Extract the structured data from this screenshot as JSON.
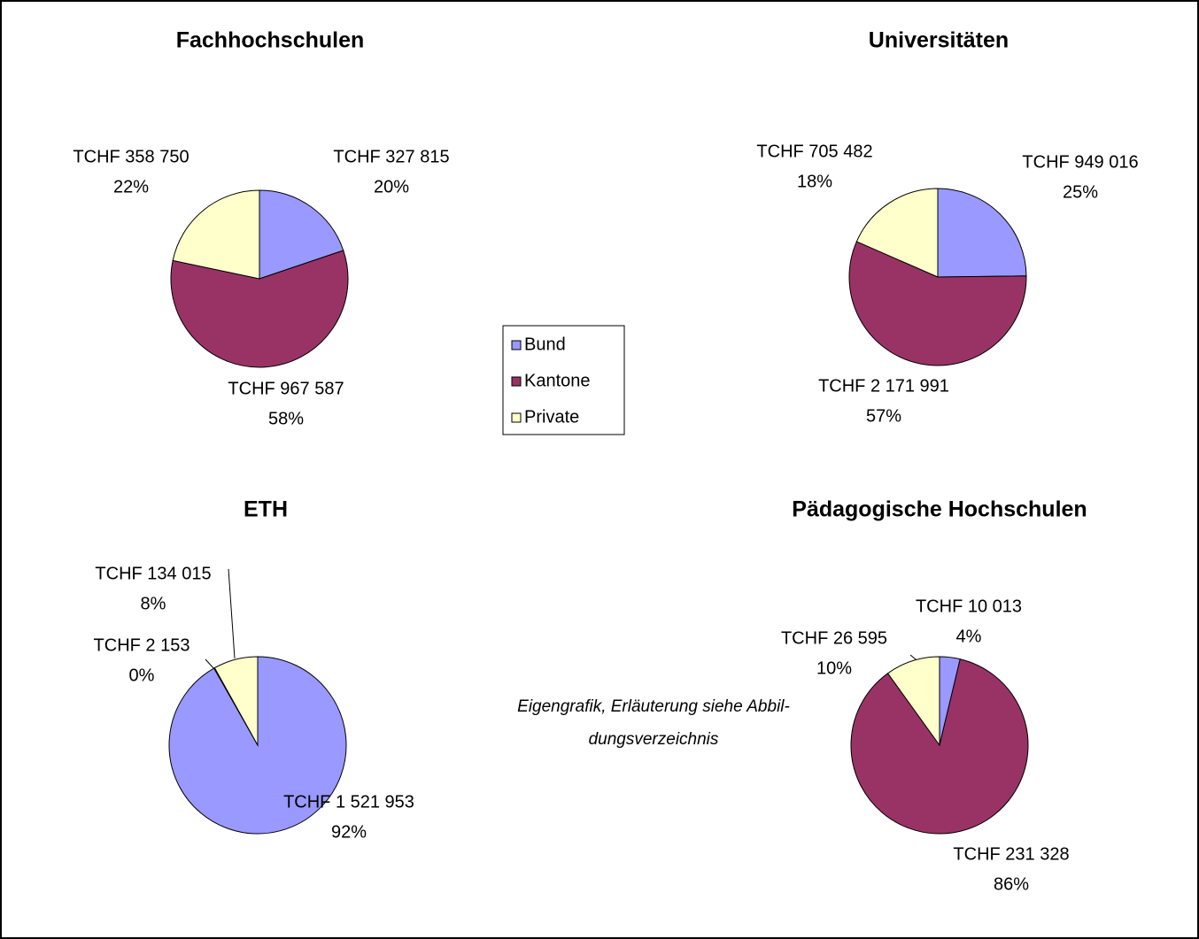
{
  "legend": {
    "categories": [
      "Bund",
      "Kantone",
      "Private"
    ],
    "colors": [
      "#9999ff",
      "#993366",
      "#ffffcc"
    ]
  },
  "chart_data": [
    {
      "type": "pie",
      "title": "Fachhochschulen",
      "values": [
        327815,
        967587,
        358750
      ],
      "value_labels": [
        "TCHF 327 815",
        "TCHF 967 587",
        "TCHF 358 750"
      ],
      "percents": [
        20,
        58,
        22
      ],
      "percent_labels": [
        "20%",
        "58%",
        "22%"
      ]
    },
    {
      "type": "pie",
      "title": "Universitäten",
      "values": [
        949016,
        2171991,
        705482
      ],
      "value_labels": [
        "TCHF 949 016",
        "TCHF 2 171 991",
        "TCHF 705 482"
      ],
      "percents": [
        25,
        57,
        18
      ],
      "percent_labels": [
        "25%",
        "57%",
        "18%"
      ]
    },
    {
      "type": "pie",
      "title": "ETH",
      "values": [
        1521953,
        2153,
        134015
      ],
      "value_labels": [
        "TCHF 1 521 953",
        "TCHF 2 153",
        "TCHF 134 015"
      ],
      "percents": [
        92,
        0,
        8
      ],
      "percent_labels": [
        "92%",
        "0%",
        "8%"
      ]
    },
    {
      "type": "pie",
      "title": "Pädagogische Hochschulen",
      "values": [
        10013,
        231328,
        26595
      ],
      "value_labels": [
        "TCHF 10 013",
        "TCHF 231 328",
        "TCHF 26 595"
      ],
      "percents": [
        4,
        86,
        10
      ],
      "percent_labels": [
        "4%",
        "86%",
        "10%"
      ]
    }
  ],
  "footnote": [
    "Eigengrafik, Erläuterung siehe Abbil-",
    "dungsverzeichnis"
  ]
}
